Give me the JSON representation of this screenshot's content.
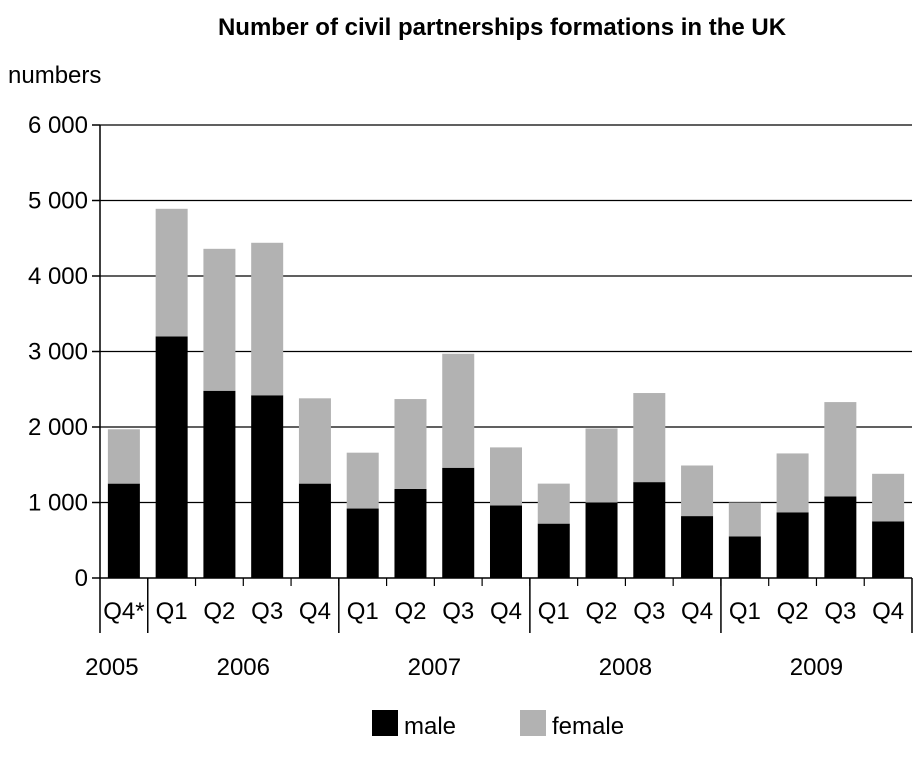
{
  "chart_data": {
    "type": "bar",
    "stacked": true,
    "title": "Number of civil partnerships formations in the UK",
    "ylabel": "numbers",
    "ylim": [
      0,
      6000
    ],
    "yticks": [
      0,
      1000,
      2000,
      3000,
      4000,
      5000,
      6000
    ],
    "ytick_labels": [
      "0",
      "1 000",
      "2 000",
      "3 000",
      "4 000",
      "5 000",
      "6 000"
    ],
    "categories": [
      "Q4*",
      "Q1",
      "Q2",
      "Q3",
      "Q4",
      "Q1",
      "Q2",
      "Q3",
      "Q4",
      "Q1",
      "Q2",
      "Q3",
      "Q4",
      "Q1",
      "Q2",
      "Q3",
      "Q4"
    ],
    "year_groups": [
      {
        "label": "2005",
        "start": 0,
        "count": 1
      },
      {
        "label": "2006",
        "start": 1,
        "count": 4
      },
      {
        "label": "2007",
        "start": 5,
        "count": 4
      },
      {
        "label": "2008",
        "start": 9,
        "count": 4
      },
      {
        "label": "2009",
        "start": 13,
        "count": 4
      }
    ],
    "series": [
      {
        "name": "male",
        "color": "#000000",
        "values": [
          1250,
          3200,
          2480,
          2420,
          1250,
          920,
          1180,
          1460,
          960,
          720,
          1000,
          1270,
          820,
          550,
          870,
          1080,
          750
        ]
      },
      {
        "name": "female",
        "color": "#b2b2b2",
        "values": [
          720,
          1690,
          1880,
          2020,
          1130,
          740,
          1190,
          1510,
          770,
          530,
          980,
          1180,
          670,
          450,
          780,
          1250,
          630
        ]
      }
    ],
    "legend_position": "bottom-center",
    "grid": true
  }
}
